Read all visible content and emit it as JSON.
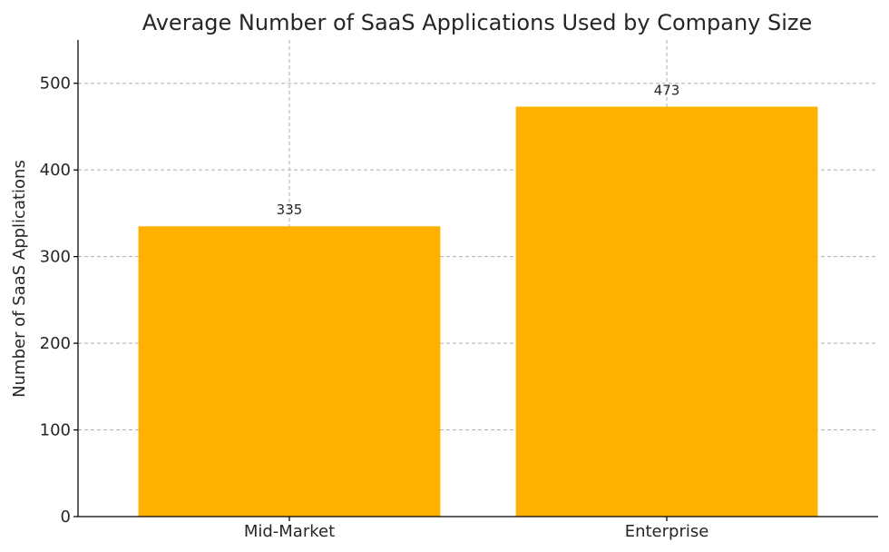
{
  "chart_data": {
    "type": "bar",
    "title": "Average Number of SaaS Applications Used by Company Size",
    "xlabel": "",
    "ylabel": "Number of SaaS Applications",
    "categories": [
      "Mid-Market",
      "Enterprise"
    ],
    "values": [
      335,
      473
    ],
    "data_labels": [
      "335",
      "473"
    ],
    "ylim": [
      0,
      550
    ],
    "yticks": [
      0,
      100,
      200,
      300,
      400,
      500
    ],
    "bar_color": "#FFB000",
    "grid": true,
    "legend": "none"
  }
}
